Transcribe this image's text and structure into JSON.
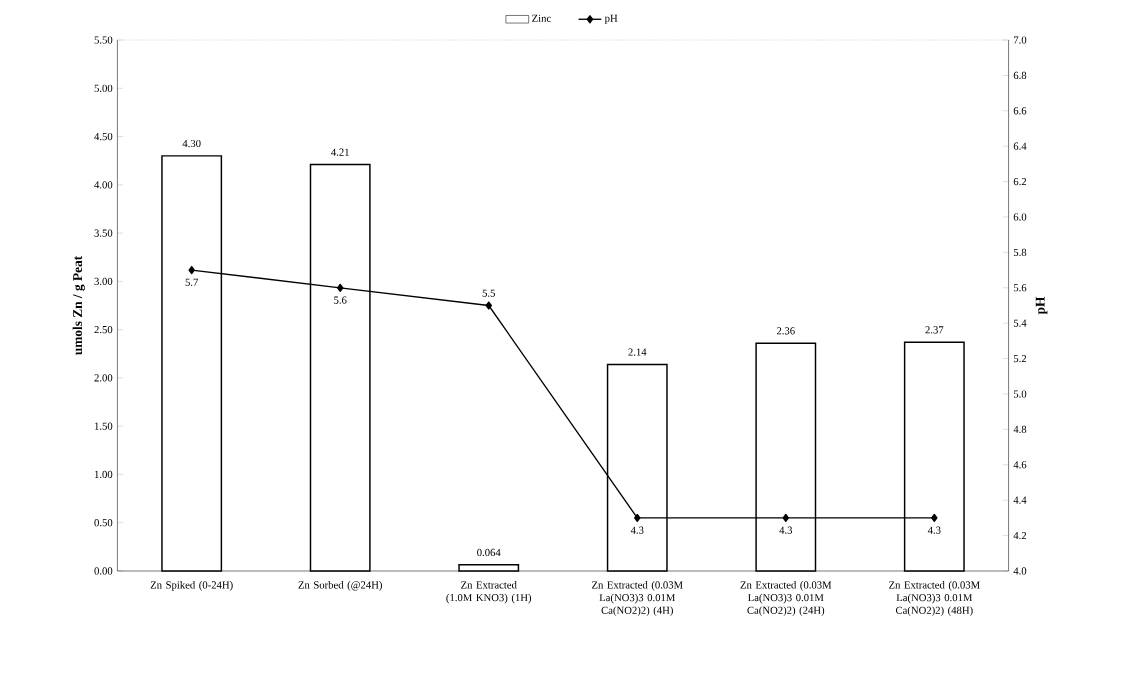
{
  "chart_data": {
    "type": "bar",
    "categories": [
      "Zn Spiked (0-24H)",
      "Zn Sorbed (@24H)",
      "Zn Extracted (1.0M KNO3) (1H)",
      "Zn Extracted (0.03M La(NO3)3 0.01M Ca(NO2)2) (4H)",
      "Zn Extracted (0.03M La(NO3)3 0.01M Ca(NO2)2) (24H)",
      "Zn Extracted (0.03M La(NO3)3 0.01M Ca(NO2)2) (48H)"
    ],
    "series": [
      {
        "name": "Zinc",
        "color": "#ffffff",
        "values": [
          4.3,
          4.21,
          0.064,
          2.14,
          2.36,
          2.37
        ],
        "value_labels": [
          "4.30",
          "4.21",
          "0.064",
          "2.14",
          "2.36",
          "2.37"
        ]
      },
      {
        "name": "pH",
        "type": "line",
        "axis": "y2",
        "color": "#000000",
        "marker": "diamond",
        "values": [
          5.7,
          5.6,
          5.5,
          4.3,
          4.3,
          4.3
        ],
        "value_labels": [
          "5.7",
          "5.6",
          "5.5",
          "4.3",
          "4.3",
          "4.3"
        ]
      }
    ],
    "ylabel": "umols Zn / g Peat",
    "y2label": "pH",
    "ylim": [
      0,
      5.5
    ],
    "yticks": [
      {
        "value": 0,
        "label": "0.00"
      },
      {
        "value": 0.5,
        "label": "0.50"
      },
      {
        "value": 1,
        "label": "1.00"
      },
      {
        "value": 1.5,
        "label": "1.50"
      },
      {
        "value": 2,
        "label": "2.00"
      },
      {
        "value": 2.5,
        "label": "2.50"
      },
      {
        "value": 3,
        "label": "3.00"
      },
      {
        "value": 3.5,
        "label": "3.50"
      },
      {
        "value": 4,
        "label": "4.00"
      },
      {
        "value": 4.5,
        "label": "4.50"
      },
      {
        "value": 5,
        "label": "5.00"
      },
      {
        "value": 5.5,
        "label": "5.50"
      }
    ],
    "y2lim": [
      4,
      7
    ],
    "y2ticks": [
      {
        "value": 4,
        "label": "4.0"
      },
      {
        "value": 4.2,
        "label": "4.2"
      },
      {
        "value": 4.4,
        "label": "4.4"
      },
      {
        "value": 4.6,
        "label": "4.6"
      },
      {
        "value": 4.8,
        "label": "4.8"
      },
      {
        "value": 5,
        "label": "5.0"
      },
      {
        "value": 5.2,
        "label": "5.2"
      },
      {
        "value": 5.4,
        "label": "5.4"
      },
      {
        "value": 5.6,
        "label": "5.6"
      },
      {
        "value": 5.8,
        "label": "5.8"
      },
      {
        "value": 6,
        "label": "6.0"
      },
      {
        "value": 6.2,
        "label": "6.2"
      },
      {
        "value": 6.4,
        "label": "6.4"
      },
      {
        "value": 6.6,
        "label": "6.6"
      },
      {
        "value": 6.8,
        "label": "6.8"
      },
      {
        "value": 7,
        "label": "7.0"
      }
    ],
    "legend": "top"
  }
}
